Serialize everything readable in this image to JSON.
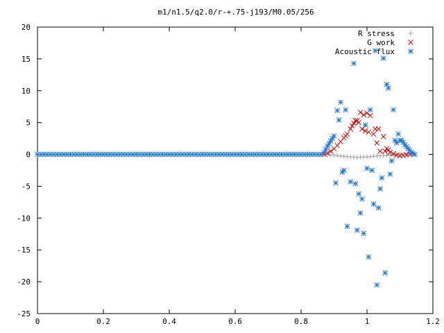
{
  "chart_data": {
    "type": "scatter",
    "title": "m1/n1.5/q2.0/r-+.75-j193/M0.05/256",
    "xlim": [
      0,
      1.2
    ],
    "ylim": [
      -25,
      20
    ],
    "x_ticks": [
      "0",
      "0.2",
      "0.4",
      "0.6",
      "0.8",
      "1",
      "1.2"
    ],
    "y_ticks": [
      "20",
      "15",
      "10",
      "5",
      "0",
      "-5",
      "-10",
      "-15",
      "-20",
      "-25"
    ],
    "legend_position": "top-right",
    "grid": false,
    "series": [
      {
        "name": "R stress",
        "marker": "plus",
        "color": "#a0a0a0",
        "x": [
          0.87,
          0.88,
          0.89,
          0.9,
          0.91,
          0.92,
          0.93,
          0.94,
          0.95,
          0.96,
          0.97,
          0.98,
          0.99,
          1.0,
          1.01,
          1.02,
          1.03,
          1.04,
          1.05,
          1.06,
          1.07,
          1.08,
          1.09,
          1.1,
          1.11,
          1.12,
          1.13,
          1.14
        ],
        "y": [
          0,
          -0.05,
          -0.1,
          -0.15,
          -0.2,
          -0.25,
          -0.3,
          -0.35,
          -0.4,
          -0.45,
          -0.45,
          -0.45,
          -0.4,
          -0.4,
          -0.35,
          -0.3,
          -0.25,
          -0.2,
          -0.2,
          -0.15,
          -0.1,
          -0.1,
          -0.05,
          -0.05,
          0,
          0,
          0,
          0
        ]
      },
      {
        "name": "G work",
        "marker": "x",
        "color": "#cc0000",
        "x": [
          0.87,
          0.88,
          0.89,
          0.9,
          0.91,
          0.92,
          0.93,
          0.935,
          0.94,
          0.95,
          0.955,
          0.96,
          0.965,
          0.97,
          0.975,
          0.98,
          0.985,
          0.99,
          0.995,
          1.0,
          1.005,
          1.01,
          1.02,
          1.025,
          1.03,
          1.035,
          1.04,
          1.05,
          1.055,
          1.06,
          1.065,
          1.07,
          1.08,
          1.09,
          1.1,
          1.11,
          1.12,
          1.13
        ],
        "y": [
          0,
          0.2,
          0.5,
          0.9,
          1.4,
          2.0,
          2.6,
          2.9,
          3.2,
          4.0,
          4.5,
          4.9,
          5.3,
          5.3,
          5.0,
          6.6,
          4.0,
          6.2,
          3.7,
          6.5,
          3.5,
          6.1,
          3.2,
          4.0,
          1.8,
          4.0,
          0.5,
          2.8,
          0.5,
          0.9,
          0.7,
          0.3,
          0.1,
          -0.1,
          -0.2,
          -0.15,
          -0.05,
          0
        ]
      },
      {
        "name": "Acoustic flux",
        "marker": "star",
        "color": "#1f77d4",
        "x": [
          0,
          0.01,
          0.02,
          0.03,
          0.04,
          0.05,
          0.06,
          0.07,
          0.08,
          0.09,
          0.1,
          0.11,
          0.12,
          0.13,
          0.14,
          0.15,
          0.16,
          0.17,
          0.18,
          0.19,
          0.2,
          0.21,
          0.22,
          0.23,
          0.24,
          0.25,
          0.26,
          0.27,
          0.28,
          0.29,
          0.3,
          0.31,
          0.32,
          0.33,
          0.34,
          0.35,
          0.36,
          0.37,
          0.38,
          0.39,
          0.4,
          0.41,
          0.42,
          0.43,
          0.44,
          0.45,
          0.46,
          0.47,
          0.48,
          0.49,
          0.5,
          0.51,
          0.52,
          0.53,
          0.54,
          0.55,
          0.56,
          0.57,
          0.58,
          0.59,
          0.6,
          0.61,
          0.62,
          0.63,
          0.64,
          0.65,
          0.66,
          0.67,
          0.68,
          0.69,
          0.7,
          0.71,
          0.72,
          0.73,
          0.74,
          0.75,
          0.76,
          0.77,
          0.78,
          0.79,
          0.8,
          0.81,
          0.82,
          0.83,
          0.84,
          0.85,
          0.86,
          0.87,
          0.875,
          0.88,
          0.885,
          0.89,
          0.895,
          0.9,
          0.905,
          0.91,
          0.915,
          0.92,
          0.925,
          0.93,
          0.935,
          0.94,
          0.95,
          0.96,
          0.965,
          0.97,
          0.975,
          0.98,
          0.985,
          0.99,
          0.995,
          1.0,
          1.005,
          1.01,
          1.015,
          1.02,
          1.025,
          1.03,
          1.035,
          1.04,
          1.045,
          1.05,
          1.055,
          1.06,
          1.065,
          1.07,
          1.075,
          1.08,
          1.085,
          1.09,
          1.095,
          1.1,
          1.105,
          1.11,
          1.115,
          1.12,
          1.125,
          1.13,
          1.135,
          1.14,
          1.145
        ],
        "y": [
          0,
          0,
          0,
          0,
          0,
          0,
          0,
          0,
          0,
          0,
          0,
          0,
          0,
          0,
          0,
          0,
          0,
          0,
          0,
          0,
          0,
          0,
          0,
          0,
          0,
          0,
          0,
          0,
          0,
          0,
          0,
          0,
          0,
          0,
          0,
          0,
          0,
          0,
          0,
          0,
          0,
          0,
          0,
          0,
          0,
          0,
          0,
          0,
          0,
          0,
          0,
          0,
          0,
          0,
          0,
          0,
          0,
          0,
          0,
          0,
          0,
          0,
          0,
          0,
          0,
          0,
          0,
          0,
          0,
          0,
          0,
          0,
          0,
          0,
          0,
          0,
          0,
          0,
          0,
          0,
          0,
          0,
          0,
          0,
          0,
          0,
          0,
          0.3,
          0.8,
          1.3,
          1.7,
          2.1,
          2.5,
          2.9,
          -4.5,
          6.9,
          5.4,
          8.2,
          -2.8,
          -2.5,
          7.0,
          -11.3,
          -4.3,
          14.3,
          -4.6,
          -11.9,
          -6.2,
          -9.2,
          -7.0,
          -12.4,
          4.6,
          -2.2,
          -16.1,
          7.0,
          -2.5,
          -7.8,
          16.3,
          -20.5,
          -8.4,
          -5.4,
          -3.7,
          15.1,
          -18.6,
          11.0,
          10.4,
          -3.1,
          -1.0,
          7.0,
          2.2,
          1.8,
          3.2,
          2.2,
          2.2,
          1.9,
          1.5,
          1.2,
          0.9,
          0.6,
          0.3,
          0.1,
          0
        ]
      }
    ]
  }
}
